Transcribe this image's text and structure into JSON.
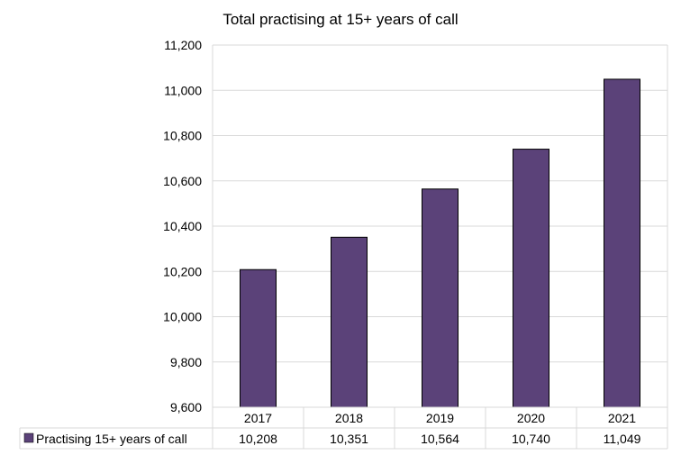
{
  "chart_data": {
    "type": "bar",
    "title": "Total practising at 15+ years of call",
    "categories": [
      "2017",
      "2018",
      "2019",
      "2020",
      "2021"
    ],
    "series": [
      {
        "name": "Practising 15+ years of call",
        "values": [
          10208,
          10351,
          10564,
          10740,
          11049
        ],
        "value_labels": [
          "10,208",
          "10,351",
          "10,564",
          "10,740",
          "11,049"
        ],
        "color": "#5b4279"
      }
    ],
    "ylim": [
      9600,
      11200
    ],
    "yticks": [
      9600,
      9800,
      10000,
      10200,
      10400,
      10600,
      10800,
      11000,
      11200
    ],
    "ytick_labels": [
      "9,600",
      "9,800",
      "10,000",
      "10,200",
      "10,400",
      "10,600",
      "10,800",
      "11,000",
      "11,200"
    ],
    "grid": true,
    "legend": "data-table-below"
  }
}
